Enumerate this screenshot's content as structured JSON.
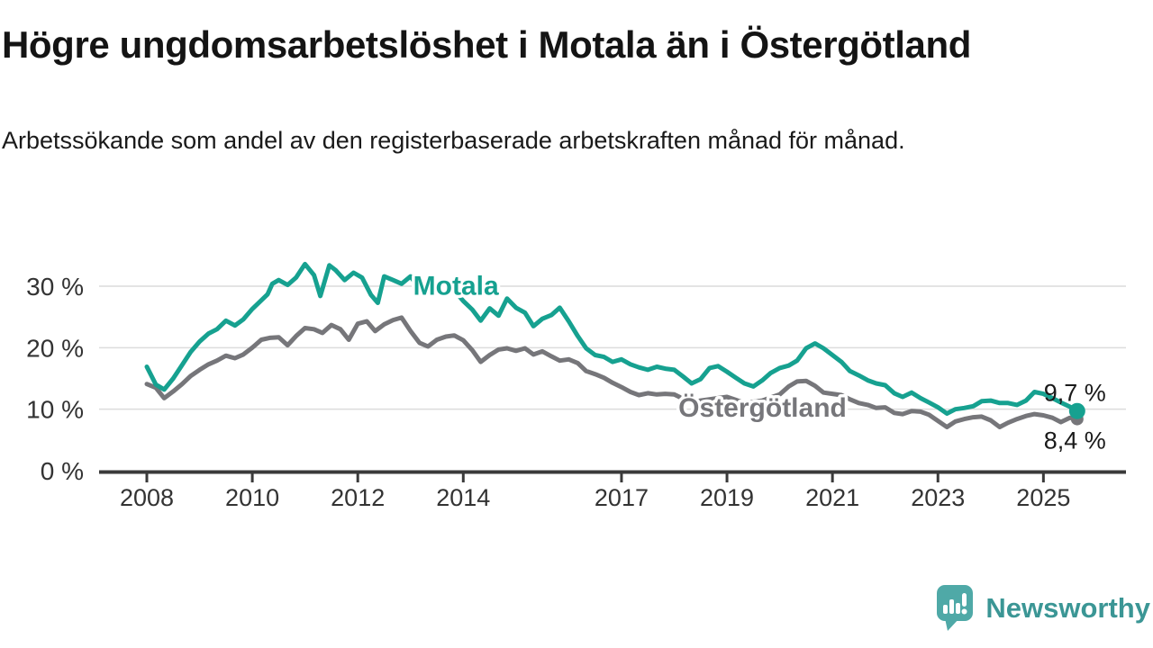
{
  "chart_data": {
    "type": "line",
    "title": "Högre ungdomsarbetslöshet i Motala än i Östergötland",
    "subtitle": "Arbetssökande som andel av den registerbaserade arbetskraften månad för månad.",
    "xlabel": "",
    "ylabel": "",
    "unit": "%",
    "grid": "horizontal",
    "legend_position": "inline-labels",
    "ylim": [
      0,
      34.5
    ],
    "xlim": [
      2007.1,
      2026.5
    ],
    "y_ticks": [
      0,
      10,
      20,
      30
    ],
    "y_tick_labels": [
      "0 %",
      "10 %",
      "20 %",
      "30 %"
    ],
    "x_ticks": [
      2008,
      2010,
      2012,
      2014,
      2017,
      2019,
      2021,
      2023,
      2025
    ],
    "x_tick_labels": [
      "2008",
      "2010",
      "2012",
      "2014",
      "2017",
      "2019",
      "2021",
      "2023",
      "2025"
    ],
    "series": [
      {
        "id": "motala",
        "name": "Motala",
        "color": "#16a190",
        "label_at": {
          "x": 2013.05,
          "y": 28.6
        },
        "points": [
          [
            2008.0,
            16.9
          ],
          [
            2008.17,
            14.0
          ],
          [
            2008.33,
            13.2
          ],
          [
            2008.5,
            15.0
          ],
          [
            2008.67,
            17.2
          ],
          [
            2008.83,
            19.3
          ],
          [
            2009.0,
            21.0
          ],
          [
            2009.17,
            22.3
          ],
          [
            2009.33,
            23.0
          ],
          [
            2009.5,
            24.4
          ],
          [
            2009.67,
            23.6
          ],
          [
            2009.83,
            24.6
          ],
          [
            2010.0,
            26.3
          ],
          [
            2010.17,
            27.7
          ],
          [
            2010.29,
            28.7
          ],
          [
            2010.38,
            30.4
          ],
          [
            2010.5,
            31.0
          ],
          [
            2010.67,
            30.2
          ],
          [
            2010.83,
            31.4
          ],
          [
            2011.0,
            33.6
          ],
          [
            2011.17,
            31.8
          ],
          [
            2011.29,
            28.4
          ],
          [
            2011.46,
            33.4
          ],
          [
            2011.58,
            32.6
          ],
          [
            2011.75,
            31.0
          ],
          [
            2011.92,
            32.2
          ],
          [
            2012.08,
            31.4
          ],
          [
            2012.25,
            28.6
          ],
          [
            2012.38,
            27.3
          ],
          [
            2012.5,
            31.6
          ],
          [
            2012.67,
            31.0
          ],
          [
            2012.83,
            30.4
          ],
          [
            2013.0,
            31.6
          ],
          [
            2013.17,
            29.6
          ],
          [
            2013.33,
            31.2
          ],
          [
            2013.5,
            30.5
          ],
          [
            2013.67,
            30.9
          ],
          [
            2013.83,
            29.3
          ],
          [
            2014.0,
            27.6
          ],
          [
            2014.17,
            26.2
          ],
          [
            2014.33,
            24.4
          ],
          [
            2014.5,
            26.4
          ],
          [
            2014.67,
            25.2
          ],
          [
            2014.83,
            28.0
          ],
          [
            2015.0,
            26.5
          ],
          [
            2015.17,
            25.7
          ],
          [
            2015.33,
            23.5
          ],
          [
            2015.5,
            24.7
          ],
          [
            2015.67,
            25.3
          ],
          [
            2015.83,
            26.5
          ],
          [
            2016.0,
            24.3
          ],
          [
            2016.17,
            21.9
          ],
          [
            2016.33,
            19.9
          ],
          [
            2016.5,
            18.8
          ],
          [
            2016.67,
            18.5
          ],
          [
            2016.83,
            17.7
          ],
          [
            2017.0,
            18.1
          ],
          [
            2017.17,
            17.3
          ],
          [
            2017.33,
            16.8
          ],
          [
            2017.5,
            16.4
          ],
          [
            2017.67,
            16.9
          ],
          [
            2017.83,
            16.6
          ],
          [
            2018.0,
            16.4
          ],
          [
            2018.17,
            15.3
          ],
          [
            2018.33,
            14.2
          ],
          [
            2018.5,
            14.9
          ],
          [
            2018.67,
            16.7
          ],
          [
            2018.83,
            17.0
          ],
          [
            2019.0,
            16.1
          ],
          [
            2019.17,
            15.1
          ],
          [
            2019.33,
            14.2
          ],
          [
            2019.5,
            13.7
          ],
          [
            2019.67,
            14.7
          ],
          [
            2019.83,
            15.9
          ],
          [
            2020.0,
            16.7
          ],
          [
            2020.17,
            17.1
          ],
          [
            2020.33,
            17.9
          ],
          [
            2020.5,
            19.9
          ],
          [
            2020.67,
            20.7
          ],
          [
            2020.83,
            19.9
          ],
          [
            2021.0,
            18.8
          ],
          [
            2021.17,
            17.7
          ],
          [
            2021.33,
            16.2
          ],
          [
            2021.5,
            15.5
          ],
          [
            2021.67,
            14.7
          ],
          [
            2021.83,
            14.2
          ],
          [
            2022.0,
            13.9
          ],
          [
            2022.17,
            12.6
          ],
          [
            2022.33,
            12.0
          ],
          [
            2022.5,
            12.7
          ],
          [
            2022.67,
            11.8
          ],
          [
            2022.83,
            11.1
          ],
          [
            2023.0,
            10.3
          ],
          [
            2023.17,
            9.3
          ],
          [
            2023.33,
            10.0
          ],
          [
            2023.5,
            10.2
          ],
          [
            2023.67,
            10.5
          ],
          [
            2023.83,
            11.3
          ],
          [
            2024.0,
            11.4
          ],
          [
            2024.17,
            11.0
          ],
          [
            2024.33,
            11.0
          ],
          [
            2024.5,
            10.7
          ],
          [
            2024.67,
            11.4
          ],
          [
            2024.83,
            12.8
          ],
          [
            2025.0,
            12.5
          ],
          [
            2025.17,
            11.8
          ],
          [
            2025.33,
            11.1
          ],
          [
            2025.5,
            10.4
          ],
          [
            2025.64,
            9.7
          ]
        ]
      },
      {
        "id": "ostergotland",
        "name": "Östergötland",
        "color": "#76767a",
        "label_at": {
          "x": 2018.08,
          "y": 8.8
        },
        "points": [
          [
            2008.0,
            14.1
          ],
          [
            2008.17,
            13.5
          ],
          [
            2008.33,
            11.8
          ],
          [
            2008.5,
            12.9
          ],
          [
            2008.67,
            14.1
          ],
          [
            2008.83,
            15.4
          ],
          [
            2009.0,
            16.4
          ],
          [
            2009.17,
            17.3
          ],
          [
            2009.33,
            17.9
          ],
          [
            2009.5,
            18.7
          ],
          [
            2009.67,
            18.3
          ],
          [
            2009.83,
            18.9
          ],
          [
            2010.0,
            20.0
          ],
          [
            2010.17,
            21.3
          ],
          [
            2010.33,
            21.6
          ],
          [
            2010.5,
            21.7
          ],
          [
            2010.67,
            20.4
          ],
          [
            2010.83,
            21.9
          ],
          [
            2011.0,
            23.2
          ],
          [
            2011.17,
            23.0
          ],
          [
            2011.33,
            22.4
          ],
          [
            2011.5,
            23.7
          ],
          [
            2011.67,
            23.0
          ],
          [
            2011.83,
            21.3
          ],
          [
            2012.0,
            23.9
          ],
          [
            2012.17,
            24.3
          ],
          [
            2012.33,
            22.7
          ],
          [
            2012.5,
            23.8
          ],
          [
            2012.67,
            24.5
          ],
          [
            2012.83,
            24.9
          ],
          [
            2013.0,
            22.7
          ],
          [
            2013.17,
            20.8
          ],
          [
            2013.33,
            20.2
          ],
          [
            2013.5,
            21.3
          ],
          [
            2013.67,
            21.8
          ],
          [
            2013.83,
            22.0
          ],
          [
            2014.0,
            21.2
          ],
          [
            2014.17,
            19.6
          ],
          [
            2014.33,
            17.7
          ],
          [
            2014.5,
            18.8
          ],
          [
            2014.67,
            19.7
          ],
          [
            2014.83,
            19.9
          ],
          [
            2015.0,
            19.5
          ],
          [
            2015.17,
            19.9
          ],
          [
            2015.33,
            18.9
          ],
          [
            2015.5,
            19.4
          ],
          [
            2015.67,
            18.6
          ],
          [
            2015.83,
            17.9
          ],
          [
            2016.0,
            18.1
          ],
          [
            2016.17,
            17.5
          ],
          [
            2016.33,
            16.2
          ],
          [
            2016.5,
            15.7
          ],
          [
            2016.67,
            15.1
          ],
          [
            2016.83,
            14.3
          ],
          [
            2017.0,
            13.6
          ],
          [
            2017.17,
            12.8
          ],
          [
            2017.33,
            12.3
          ],
          [
            2017.5,
            12.6
          ],
          [
            2017.67,
            12.4
          ],
          [
            2017.83,
            12.5
          ],
          [
            2018.0,
            12.4
          ],
          [
            2018.17,
            11.7
          ],
          [
            2018.33,
            11.1
          ],
          [
            2018.5,
            11.4
          ],
          [
            2018.67,
            11.6
          ],
          [
            2018.83,
            11.8
          ],
          [
            2019.0,
            12.0
          ],
          [
            2019.17,
            11.5
          ],
          [
            2019.33,
            11.0
          ],
          [
            2019.5,
            11.2
          ],
          [
            2019.67,
            11.4
          ],
          [
            2019.83,
            11.9
          ],
          [
            2020.0,
            12.4
          ],
          [
            2020.17,
            13.7
          ],
          [
            2020.33,
            14.5
          ],
          [
            2020.5,
            14.6
          ],
          [
            2020.67,
            13.8
          ],
          [
            2020.83,
            12.7
          ],
          [
            2021.0,
            12.5
          ],
          [
            2021.17,
            12.3
          ],
          [
            2021.33,
            11.6
          ],
          [
            2021.5,
            11.0
          ],
          [
            2021.67,
            10.7
          ],
          [
            2021.83,
            10.2
          ],
          [
            2022.0,
            10.3
          ],
          [
            2022.17,
            9.4
          ],
          [
            2022.33,
            9.2
          ],
          [
            2022.5,
            9.7
          ],
          [
            2022.67,
            9.6
          ],
          [
            2022.83,
            9.1
          ],
          [
            2023.0,
            8.1
          ],
          [
            2023.17,
            7.1
          ],
          [
            2023.33,
            8.0
          ],
          [
            2023.5,
            8.4
          ],
          [
            2023.67,
            8.7
          ],
          [
            2023.83,
            8.8
          ],
          [
            2024.0,
            8.2
          ],
          [
            2024.17,
            7.1
          ],
          [
            2024.33,
            7.8
          ],
          [
            2024.5,
            8.4
          ],
          [
            2024.67,
            8.9
          ],
          [
            2024.83,
            9.2
          ],
          [
            2025.0,
            9.0
          ],
          [
            2025.17,
            8.6
          ],
          [
            2025.33,
            7.9
          ],
          [
            2025.5,
            8.6
          ],
          [
            2025.64,
            8.4
          ]
        ]
      }
    ],
    "end_labels": [
      {
        "series": "motala",
        "text": "9,7 %",
        "value": 9.7
      },
      {
        "series": "ostergotland",
        "text": "8,4 %",
        "value": 8.4
      }
    ],
    "colors": {
      "gridline": "#dcdcdc",
      "axis": "#3a3a3a",
      "tick_text": "#333333",
      "end_label_text": "#1a1a1a"
    }
  },
  "branding": {
    "name": "Newsworthy",
    "icon": "newsworthy-speech-bubble-barchart-icon",
    "icon_color": "#4fa9a7",
    "text_color": "#3b9695"
  }
}
